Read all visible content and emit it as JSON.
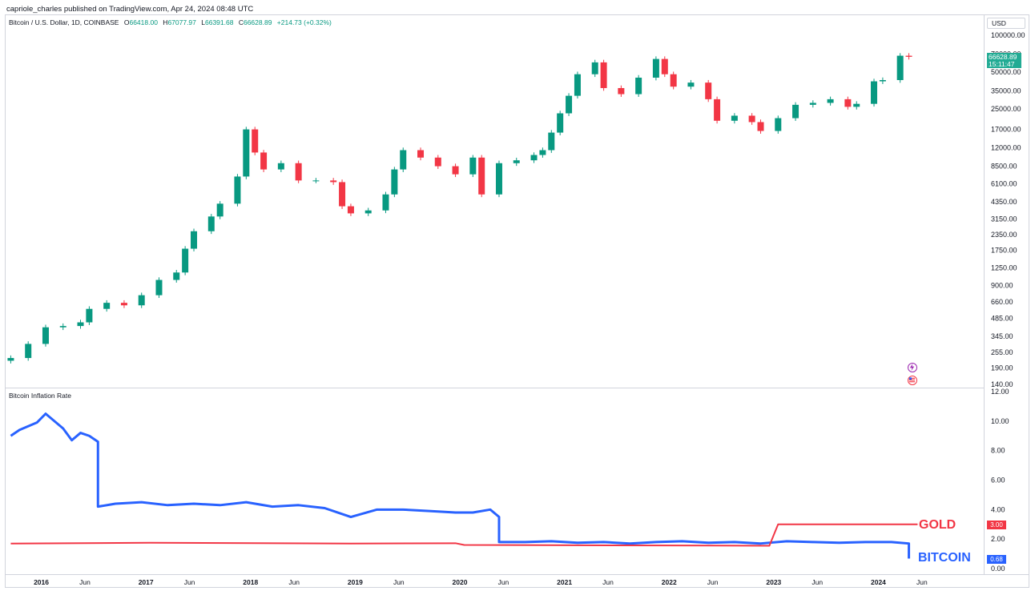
{
  "header": {
    "published": "capriole_charles published on TradingView.com, Apr 24, 2024 08:48 UTC"
  },
  "main_legend": {
    "symbol": "Bitcoin / U.S. Dollar, 1D, COINBASE",
    "o_label": "O",
    "o": "66418.00",
    "h_label": "H",
    "h": "67077.97",
    "l_label": "L",
    "l": "66391.68",
    "c_label": "C",
    "c": "66628.89",
    "change": "+214.73 (+0.32%)"
  },
  "indicator_legend": {
    "name": "Bitcoin Inflation Rate"
  },
  "currency": "USD",
  "price_tag": {
    "price": "66628.89",
    "countdown": "15:11:47"
  },
  "series_labels": {
    "gold": "GOLD",
    "bitcoin": "BITCOIN"
  },
  "value_tags": {
    "gold": "3.00",
    "bitcoin": "0.68"
  },
  "colors": {
    "up": "#089981",
    "down": "#f23645",
    "bitcoin_line": "#2962ff",
    "gold_line": "#f23645"
  },
  "icons": {
    "event_top": "lightning-icon",
    "event_bottom": "us-flag-icon"
  },
  "chart_data": [
    {
      "type": "candlestick",
      "title": "Bitcoin / U.S. Dollar, 1D, COINBASE",
      "scale": "log",
      "y_ticks": [
        "100000.00",
        "70000.00",
        "50000.00",
        "35000.00",
        "25000.00",
        "17000.00",
        "12000.00",
        "8500.00",
        "6100.00",
        "4350.00",
        "3150.00",
        "2350.00",
        "1750.00",
        "1250.00",
        "900.00",
        "660.00",
        "485.00",
        "345.00",
        "255.00",
        "190.00",
        "140.00"
      ],
      "ylim": [
        140,
        100000
      ],
      "x": [
        "2015-09",
        "2015-11",
        "2016-01",
        "2016-03",
        "2016-05",
        "2016-06",
        "2016-08",
        "2016-10",
        "2016-12",
        "2017-02",
        "2017-04",
        "2017-05",
        "2017-06",
        "2017-08",
        "2017-09",
        "2017-11",
        "2017-12",
        "2018-01",
        "2018-02",
        "2018-04",
        "2018-06",
        "2018-08",
        "2018-10",
        "2018-11",
        "2018-12",
        "2019-02",
        "2019-04",
        "2019-05",
        "2019-06",
        "2019-08",
        "2019-10",
        "2019-12",
        "2020-02",
        "2020-03",
        "2020-05",
        "2020-07",
        "2020-09",
        "2020-10",
        "2020-11",
        "2020-12",
        "2021-01",
        "2021-02",
        "2021-04",
        "2021-05",
        "2021-07",
        "2021-09",
        "2021-11",
        "2021-12",
        "2022-01",
        "2022-03",
        "2022-05",
        "2022-06",
        "2022-08",
        "2022-10",
        "2022-11",
        "2023-01",
        "2023-03",
        "2023-05",
        "2023-07",
        "2023-09",
        "2023-10",
        "2023-12",
        "2024-01",
        "2024-03",
        "2024-04"
      ],
      "values": [
        230,
        300,
        410,
        420,
        450,
        580,
        650,
        620,
        750,
        1000,
        1150,
        1800,
        2500,
        3300,
        4200,
        7000,
        17000,
        11000,
        8000,
        9000,
        6500,
        6500,
        6300,
        4000,
        3500,
        3700,
        5000,
        8000,
        11500,
        10000,
        8500,
        7300,
        10000,
        5000,
        9000,
        9500,
        10500,
        11500,
        16000,
        23000,
        32000,
        48000,
        60000,
        37000,
        33000,
        45000,
        64000,
        48000,
        38000,
        41000,
        30000,
        20000,
        22000,
        19500,
        16500,
        21000,
        27000,
        28000,
        30000,
        26000,
        27500,
        42000,
        43000,
        68000,
        66628.89
      ]
    },
    {
      "type": "line",
      "title": "Bitcoin Inflation Rate",
      "y_ticks": [
        "12.00",
        "10.00",
        "8.00",
        "6.00",
        "4.00",
        "2.00",
        "0.00"
      ],
      "ylim": [
        0,
        12
      ],
      "series": [
        {
          "name": "BITCOIN",
          "x": [
            "2015-09",
            "2015-10",
            "2015-12",
            "2016-01",
            "2016-03",
            "2016-04",
            "2016-05",
            "2016-06",
            "2016-07",
            "2016-07",
            "2016-09",
            "2016-12",
            "2017-03",
            "2017-06",
            "2017-09",
            "2017-12",
            "2018-03",
            "2018-06",
            "2018-09",
            "2018-12",
            "2019-03",
            "2019-06",
            "2019-09",
            "2019-12",
            "2020-02",
            "2020-04",
            "2020-05",
            "2020-05",
            "2020-08",
            "2020-11",
            "2021-02",
            "2021-05",
            "2021-08",
            "2021-11",
            "2022-02",
            "2022-05",
            "2022-08",
            "2022-11",
            "2023-02",
            "2023-05",
            "2023-08",
            "2023-11",
            "2024-02",
            "2024-04",
            "2024-04"
          ],
          "values": [
            9.0,
            9.4,
            9.9,
            10.5,
            9.5,
            8.7,
            9.2,
            9.0,
            8.6,
            4.2,
            4.4,
            4.5,
            4.3,
            4.4,
            4.3,
            4.5,
            4.2,
            4.3,
            4.1,
            3.5,
            4.0,
            4.0,
            3.9,
            3.8,
            3.8,
            4.0,
            3.5,
            1.8,
            1.8,
            1.85,
            1.75,
            1.8,
            1.7,
            1.8,
            1.85,
            1.75,
            1.8,
            1.7,
            1.85,
            1.8,
            1.75,
            1.8,
            1.8,
            1.7,
            0.68
          ]
        },
        {
          "name": "GOLD",
          "x": [
            "2015-09",
            "2017-01",
            "2018-12",
            "2019-12",
            "2020-01",
            "2022-12",
            "2023-01",
            "2024-05"
          ],
          "values": [
            1.7,
            1.75,
            1.7,
            1.72,
            1.6,
            1.55,
            3.0,
            3.0
          ]
        }
      ]
    }
  ],
  "time_axis": {
    "labels": [
      "2016",
      "Jun",
      "2017",
      "Jun",
      "2018",
      "Jun",
      "2019",
      "Jun",
      "2020",
      "Jun",
      "2021",
      "Jun",
      "2022",
      "Jun",
      "2023",
      "Jun",
      "2024",
      "Jun"
    ]
  }
}
